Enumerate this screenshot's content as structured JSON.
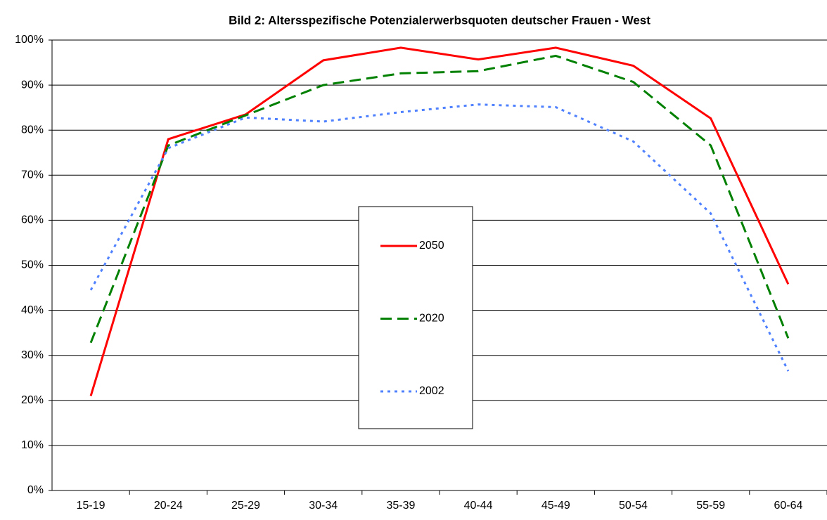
{
  "chart_data": {
    "type": "line",
    "title": "Bild 2: Altersspezifische Potenzialerwerbsquoten deutscher Frauen - West",
    "categories": [
      "15-19",
      "20-24",
      "25-29",
      "30-34",
      "35-39",
      "40-44",
      "45-49",
      "50-54",
      "55-59",
      "60-64"
    ],
    "series": [
      {
        "name": "2050",
        "color": "#ff0000",
        "style": "solid",
        "values": [
          21,
          78,
          83.5,
          95.5,
          98.3,
          95.7,
          98.3,
          94.3,
          82.6,
          45.8
        ]
      },
      {
        "name": "2020",
        "color": "#008000",
        "style": "dashed",
        "values": [
          32.8,
          76.6,
          83.3,
          90,
          92.6,
          93.1,
          96.5,
          90.7,
          76.6,
          33.8
        ]
      },
      {
        "name": "2002",
        "color": "#4f81ff",
        "style": "dotted",
        "values": [
          44.5,
          76,
          82.8,
          81.9,
          84,
          85.7,
          85.1,
          77.5,
          61.5,
          26.5
        ]
      }
    ],
    "ylim": [
      0,
      100
    ],
    "yticks": [
      {
        "value": 0,
        "label": "0%"
      },
      {
        "value": 10,
        "label": "10%"
      },
      {
        "value": 20,
        "label": "20%"
      },
      {
        "value": 30,
        "label": "30%"
      },
      {
        "value": 40,
        "label": "40%"
      },
      {
        "value": 50,
        "label": "50%"
      },
      {
        "value": 60,
        "label": "60%"
      },
      {
        "value": 70,
        "label": "70%"
      },
      {
        "value": 80,
        "label": "80%"
      },
      {
        "value": 90,
        "label": "90%"
      },
      {
        "value": 100,
        "label": "100%"
      }
    ],
    "grid": true,
    "legend": "center"
  }
}
